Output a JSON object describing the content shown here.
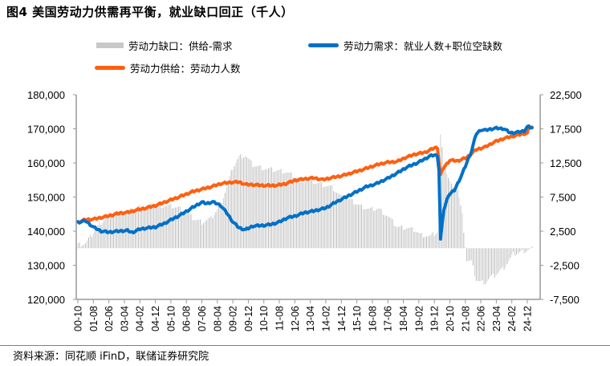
{
  "header": {
    "title": "图4  美国劳动力供需再平衡，就业缺口回正（千人）"
  },
  "footer": {
    "source": "资料来源：同花顺 iFinD，联储证券研究院"
  },
  "colors": {
    "gap": "#c8c8c8",
    "demand": "#0070c8",
    "supply": "#ff6010",
    "axis": "#999999"
  },
  "chart_data": {
    "type": "line+bar",
    "title": "图4 美国劳动力供需再平衡，就业缺口回正（千人）",
    "legend": [
      {
        "key": "gap",
        "label": "劳动力缺口：供给-需求",
        "type": "bar",
        "axis": "right"
      },
      {
        "key": "demand",
        "label": "劳动力需求：就业人数+职位空缺数",
        "type": "line",
        "axis": "left"
      },
      {
        "key": "supply",
        "label": "劳动力供给：劳动力人数",
        "type": "line",
        "axis": "left"
      }
    ],
    "left_axis": {
      "min": 120000,
      "max": 180000,
      "step": 10000,
      "ticks": [
        "120,000",
        "130,000",
        "140,000",
        "150,000",
        "160,000",
        "170,000",
        "180,000"
      ]
    },
    "right_axis": {
      "min": -7500,
      "max": 22500,
      "step": 5000,
      "ticks": [
        "-7,500",
        "-2,500",
        "2,500",
        "7,500",
        "12,500",
        "17,500",
        "22,500"
      ]
    },
    "x_ticks": [
      "00-10",
      "01-08",
      "02-06",
      "03-04",
      "04-02",
      "04-12",
      "05-10",
      "06-08",
      "07-06",
      "08-04",
      "09-02",
      "09-12",
      "10-10",
      "11-08",
      "12-06",
      "13-04",
      "14-02",
      "14-12",
      "15-10",
      "16-08",
      "17-06",
      "18-04",
      "19-02",
      "19-12",
      "20-10",
      "21-08",
      "22-06",
      "23-04",
      "24-02",
      "24-12"
    ],
    "x_start": "2000-10",
    "x_end": "2025-03",
    "series": [
      {
        "name": "劳动力需求：就业人数+职位空缺数",
        "key": "demand",
        "points": [
          [
            "2000-10",
            142600
          ],
          [
            "2001-03",
            143000
          ],
          [
            "2001-08",
            141200
          ],
          [
            "2002-01",
            140000
          ],
          [
            "2002-06",
            139700
          ],
          [
            "2002-12",
            140000
          ],
          [
            "2003-06",
            140200
          ],
          [
            "2003-09",
            139600
          ],
          [
            "2004-02",
            140600
          ],
          [
            "2004-08",
            141000
          ],
          [
            "2004-12",
            141200
          ],
          [
            "2005-06",
            142300
          ],
          [
            "2005-10",
            143300
          ],
          [
            "2006-04",
            144700
          ],
          [
            "2006-08",
            145800
          ],
          [
            "2007-01",
            147200
          ],
          [
            "2007-06",
            148500
          ],
          [
            "2007-09",
            148100
          ],
          [
            "2008-01",
            148600
          ],
          [
            "2008-06",
            147600
          ],
          [
            "2008-10",
            145400
          ],
          [
            "2009-02",
            142700
          ],
          [
            "2009-06",
            141000
          ],
          [
            "2009-10",
            140400
          ],
          [
            "2010-03",
            141500
          ],
          [
            "2010-10",
            141700
          ],
          [
            "2011-03",
            142000
          ],
          [
            "2011-08",
            142700
          ],
          [
            "2012-01",
            143900
          ],
          [
            "2012-06",
            144400
          ],
          [
            "2012-12",
            145400
          ],
          [
            "2013-06",
            145900
          ],
          [
            "2014-02",
            146800
          ],
          [
            "2014-08",
            148400
          ],
          [
            "2015-03",
            150000
          ],
          [
            "2015-10",
            151600
          ],
          [
            "2016-04",
            153000
          ],
          [
            "2016-10",
            153800
          ],
          [
            "2017-06",
            155500
          ],
          [
            "2018-01",
            157300
          ],
          [
            "2018-06",
            158700
          ],
          [
            "2019-01",
            160000
          ],
          [
            "2019-06",
            161200
          ],
          [
            "2019-09",
            162000
          ],
          [
            "2019-12",
            162300
          ],
          [
            "2020-02",
            162100
          ],
          [
            "2020-03",
            158000
          ],
          [
            "2020-04",
            137600
          ],
          [
            "2020-06",
            146000
          ],
          [
            "2020-09",
            150500
          ],
          [
            "2021-01",
            152000
          ],
          [
            "2021-06",
            156800
          ],
          [
            "2021-12",
            163500
          ],
          [
            "2022-03",
            168500
          ],
          [
            "2022-06",
            169700
          ],
          [
            "2022-09",
            169600
          ],
          [
            "2022-12",
            169900
          ],
          [
            "2023-04",
            170200
          ],
          [
            "2023-09",
            170000
          ],
          [
            "2024-01",
            168800
          ],
          [
            "2024-06",
            169000
          ],
          [
            "2024-10",
            169400
          ],
          [
            "2024-12",
            170600
          ],
          [
            "2025-03",
            170300
          ]
        ]
      },
      {
        "name": "劳动力供给：劳动力人数",
        "key": "supply",
        "points": [
          [
            "2000-10",
            142600
          ],
          [
            "2001-03",
            143400
          ],
          [
            "2001-08",
            143500
          ],
          [
            "2002-01",
            144000
          ],
          [
            "2002-06",
            144500
          ],
          [
            "2002-12",
            145200
          ],
          [
            "2003-06",
            145500
          ],
          [
            "2003-12",
            146200
          ],
          [
            "2004-06",
            146800
          ],
          [
            "2004-12",
            147500
          ],
          [
            "2005-06",
            148500
          ],
          [
            "2005-12",
            149500
          ],
          [
            "2006-06",
            150500
          ],
          [
            "2006-12",
            151600
          ],
          [
            "2007-06",
            152300
          ],
          [
            "2007-12",
            153000
          ],
          [
            "2008-06",
            153900
          ],
          [
            "2008-12",
            154300
          ],
          [
            "2009-06",
            154400
          ],
          [
            "2009-10",
            153700
          ],
          [
            "2010-03",
            153600
          ],
          [
            "2010-10",
            153400
          ],
          [
            "2011-06",
            153400
          ],
          [
            "2011-12",
            153900
          ],
          [
            "2012-06",
            154900
          ],
          [
            "2012-12",
            155300
          ],
          [
            "2013-06",
            155600
          ],
          [
            "2013-12",
            155100
          ],
          [
            "2014-06",
            155700
          ],
          [
            "2014-12",
            156200
          ],
          [
            "2015-06",
            157000
          ],
          [
            "2015-12",
            157800
          ],
          [
            "2016-06",
            158700
          ],
          [
            "2016-12",
            159600
          ],
          [
            "2017-06",
            160200
          ],
          [
            "2017-12",
            160400
          ],
          [
            "2018-06",
            161700
          ],
          [
            "2018-12",
            162600
          ],
          [
            "2019-06",
            163100
          ],
          [
            "2019-12",
            164400
          ],
          [
            "2020-02",
            164500
          ],
          [
            "2020-04",
            156500
          ],
          [
            "2020-06",
            158600
          ],
          [
            "2020-10",
            160800
          ],
          [
            "2021-03",
            160600
          ],
          [
            "2021-09",
            161600
          ],
          [
            "2022-03",
            163900
          ],
          [
            "2022-09",
            164700
          ],
          [
            "2023-03",
            166200
          ],
          [
            "2023-09",
            167200
          ],
          [
            "2024-03",
            167900
          ],
          [
            "2024-09",
            168500
          ],
          [
            "2024-12",
            168700
          ],
          [
            "2025-01",
            170600
          ],
          [
            "2025-03",
            170500
          ]
        ]
      },
      {
        "name": "劳动力缺口：供给-需求",
        "key": "gap",
        "points": [
          [
            "2000-10",
            500
          ],
          [
            "2001-03",
            700
          ],
          [
            "2001-08",
            2300
          ],
          [
            "2002-01",
            3800
          ],
          [
            "2002-06",
            4700
          ],
          [
            "2002-12",
            5200
          ],
          [
            "2003-06",
            5300
          ],
          [
            "2003-12",
            6000
          ],
          [
            "2004-06",
            6100
          ],
          [
            "2004-12",
            6300
          ],
          [
            "2005-06",
            6200
          ],
          [
            "2005-12",
            6100
          ],
          [
            "2006-06",
            5700
          ],
          [
            "2006-12",
            4400
          ],
          [
            "2007-06",
            3800
          ],
          [
            "2007-12",
            4400
          ],
          [
            "2008-06",
            6300
          ],
          [
            "2008-10",
            8900
          ],
          [
            "2009-02",
            11800
          ],
          [
            "2009-06",
            13400
          ],
          [
            "2009-10",
            13600
          ],
          [
            "2010-03",
            12200
          ],
          [
            "2010-10",
            11700
          ],
          [
            "2011-06",
            11400
          ],
          [
            "2011-12",
            11200
          ],
          [
            "2012-06",
            10500
          ],
          [
            "2012-12",
            9900
          ],
          [
            "2013-06",
            9700
          ],
          [
            "2013-12",
            9300
          ],
          [
            "2014-06",
            8900
          ],
          [
            "2014-12",
            7500
          ],
          [
            "2015-06",
            7000
          ],
          [
            "2015-12",
            6200
          ],
          [
            "2016-06",
            5700
          ],
          [
            "2016-12",
            5800
          ],
          [
            "2017-06",
            4700
          ],
          [
            "2017-12",
            3100
          ],
          [
            "2018-06",
            3000
          ],
          [
            "2018-12",
            2600
          ],
          [
            "2019-03",
            2000
          ],
          [
            "2019-06",
            1900
          ],
          [
            "2019-09",
            1700
          ],
          [
            "2019-12",
            2100
          ],
          [
            "2020-02",
            2400
          ],
          [
            "2020-03",
            4000
          ],
          [
            "2020-04",
            16500
          ],
          [
            "2020-05",
            14500
          ],
          [
            "2020-06",
            12600
          ],
          [
            "2020-09",
            10300
          ],
          [
            "2020-12",
            8700
          ],
          [
            "2021-03",
            8600
          ],
          [
            "2021-06",
            4800
          ],
          [
            "2021-09",
            -1800
          ],
          [
            "2021-12",
            -2000
          ],
          [
            "2022-03",
            -4600
          ],
          [
            "2022-06",
            -5000
          ],
          [
            "2022-09",
            -5000
          ],
          [
            "2022-12",
            -4300
          ],
          [
            "2023-03",
            -4000
          ],
          [
            "2023-09",
            -2800
          ],
          [
            "2024-03",
            -900
          ],
          [
            "2024-09",
            -500
          ],
          [
            "2025-03",
            0
          ]
        ]
      }
    ]
  }
}
